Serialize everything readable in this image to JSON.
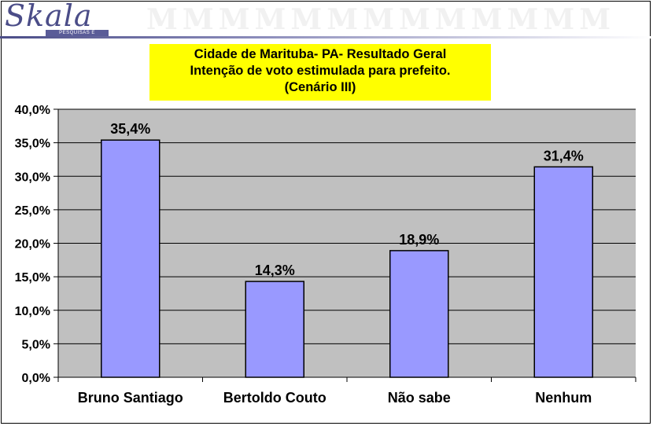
{
  "logo": {
    "name": "Skala",
    "tagline": "PESQUISAS E EVENTOS"
  },
  "colors": {
    "plot_bg": "#c0c0c0",
    "bar_fill": "#9999ff",
    "bar_stroke": "#000000",
    "title_bg": "#ffff00",
    "logo": "#4b4d88"
  },
  "chart_data": {
    "type": "bar",
    "title": [
      "Cidade de Marituba- PA- Resultado Geral",
      "Intenção de voto estimulada para prefeito.",
      "(Cenário III)"
    ],
    "categories": [
      "Bruno Santiago",
      "Bertoldo Couto",
      "Não sabe",
      "Nenhum"
    ],
    "values": [
      35.4,
      14.3,
      18.9,
      31.4
    ],
    "data_labels": [
      "35,4%",
      "14,3%",
      "18,9%",
      "31,4%"
    ],
    "ylim": [
      0,
      40
    ],
    "yticks": [
      "0,0%",
      "5,0%",
      "10,0%",
      "15,0%",
      "20,0%",
      "25,0%",
      "30,0%",
      "35,0%",
      "40,0%"
    ],
    "xlabel": "",
    "ylabel": "",
    "grid": true,
    "legend": "none"
  }
}
